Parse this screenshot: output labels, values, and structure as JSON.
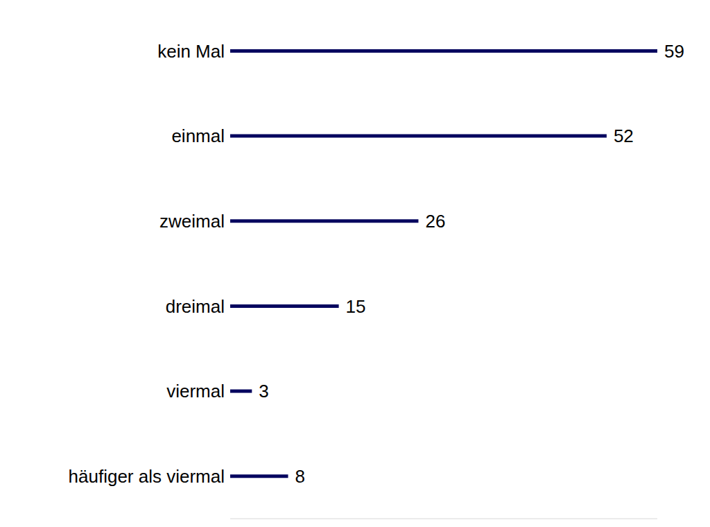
{
  "chart_data": {
    "type": "bar",
    "orientation": "horizontal",
    "categories": [
      "kein Mal",
      "einmal",
      "zweimal",
      "dreimal",
      "viermal",
      "häufiger als viermal"
    ],
    "values": [
      59,
      52,
      26,
      15,
      3,
      8
    ],
    "color": "#06065f",
    "xlim": [
      0,
      59
    ],
    "data_labels": true,
    "tick_labels": "y",
    "grid": false
  }
}
